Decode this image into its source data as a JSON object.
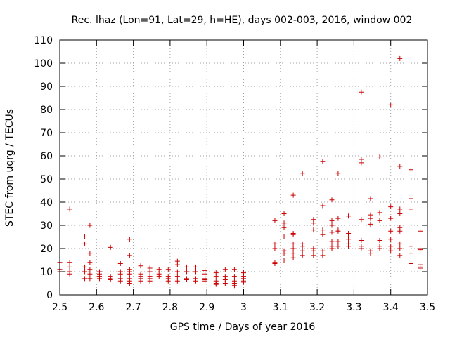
{
  "chart_data": {
    "type": "scatter",
    "title": "Rec. lhaz (Lon=91, Lat=29, h=HE), days 002-003, 2016, window 002",
    "xlabel": "GPS time / Days of year 2016",
    "ylabel": "STEC from uqrg / TECUs",
    "xlim": [
      2.5,
      3.5
    ],
    "ylim": [
      0,
      110
    ],
    "xticks": [
      2.5,
      2.6,
      2.7,
      2.8,
      2.9,
      3.0,
      3.1,
      3.2,
      3.3,
      3.4,
      3.5
    ],
    "xtick_labels": [
      "2.5",
      "2.6",
      "2.7",
      "2.8",
      "2.9",
      "3",
      "3.1",
      "3.2",
      "3.3",
      "3.4",
      "3.5"
    ],
    "yticks": [
      0,
      10,
      20,
      30,
      40,
      50,
      60,
      70,
      80,
      90,
      100,
      110
    ],
    "ytick_labels": [
      "0",
      "10",
      "20",
      "30",
      "40",
      "50",
      "60",
      "70",
      "80",
      "90",
      "100",
      "110"
    ],
    "marker": "+",
    "color": "#cc0000",
    "series": [
      {
        "name": "STEC",
        "points": [
          [
            2.5,
            25
          ],
          [
            2.5,
            15
          ],
          [
            2.5,
            14
          ],
          [
            2.5,
            11
          ],
          [
            2.5,
            10
          ],
          [
            2.527,
            37
          ],
          [
            2.527,
            14
          ],
          [
            2.527,
            12
          ],
          [
            2.527,
            10
          ],
          [
            2.527,
            9
          ],
          [
            2.568,
            25
          ],
          [
            2.568,
            22
          ],
          [
            2.568,
            12
          ],
          [
            2.568,
            10
          ],
          [
            2.568,
            7
          ],
          [
            2.582,
            30
          ],
          [
            2.582,
            18
          ],
          [
            2.582,
            14
          ],
          [
            2.582,
            11
          ],
          [
            2.582,
            9
          ],
          [
            2.582,
            7
          ],
          [
            2.608,
            10
          ],
          [
            2.608,
            9
          ],
          [
            2.608,
            8
          ],
          [
            2.608,
            7
          ],
          [
            2.638,
            20.5
          ],
          [
            2.638,
            8
          ],
          [
            2.638,
            7
          ],
          [
            2.638,
            6.5
          ],
          [
            2.665,
            13.5
          ],
          [
            2.665,
            10
          ],
          [
            2.665,
            9
          ],
          [
            2.665,
            7
          ],
          [
            2.665,
            6
          ],
          [
            2.69,
            24
          ],
          [
            2.69,
            17
          ],
          [
            2.69,
            11
          ],
          [
            2.69,
            10
          ],
          [
            2.69,
            9
          ],
          [
            2.69,
            7
          ],
          [
            2.69,
            6
          ],
          [
            2.69,
            5
          ],
          [
            2.72,
            12.5
          ],
          [
            2.72,
            9
          ],
          [
            2.72,
            8
          ],
          [
            2.72,
            7
          ],
          [
            2.72,
            6
          ],
          [
            2.745,
            11.5
          ],
          [
            2.745,
            10
          ],
          [
            2.745,
            8
          ],
          [
            2.745,
            7
          ],
          [
            2.745,
            6
          ],
          [
            2.77,
            11
          ],
          [
            2.77,
            9
          ],
          [
            2.77,
            8
          ],
          [
            2.795,
            11
          ],
          [
            2.795,
            8
          ],
          [
            2.795,
            7
          ],
          [
            2.795,
            6
          ],
          [
            2.82,
            14.5
          ],
          [
            2.82,
            13
          ],
          [
            2.82,
            10
          ],
          [
            2.82,
            8
          ],
          [
            2.82,
            6
          ],
          [
            2.845,
            12
          ],
          [
            2.845,
            10
          ],
          [
            2.845,
            7
          ],
          [
            2.845,
            6.5
          ],
          [
            2.87,
            12
          ],
          [
            2.87,
            10
          ],
          [
            2.87,
            7
          ],
          [
            2.87,
            6
          ],
          [
            2.895,
            10.5
          ],
          [
            2.895,
            9
          ],
          [
            2.895,
            7
          ],
          [
            2.895,
            6.5
          ],
          [
            2.895,
            6
          ],
          [
            2.925,
            9.5
          ],
          [
            2.925,
            8
          ],
          [
            2.925,
            6
          ],
          [
            2.925,
            5
          ],
          [
            2.925,
            4.5
          ],
          [
            2.95,
            11
          ],
          [
            2.95,
            8
          ],
          [
            2.95,
            6.5
          ],
          [
            2.95,
            5
          ],
          [
            2.975,
            11
          ],
          [
            2.975,
            8
          ],
          [
            2.975,
            6
          ],
          [
            2.975,
            5
          ],
          [
            2.975,
            4
          ],
          [
            3.0,
            9.5
          ],
          [
            3.0,
            8
          ],
          [
            3.0,
            7
          ],
          [
            3.0,
            6
          ],
          [
            3.0,
            5.5
          ],
          [
            3.085,
            32
          ],
          [
            3.085,
            22
          ],
          [
            3.085,
            20
          ],
          [
            3.085,
            14
          ],
          [
            3.085,
            13.5
          ],
          [
            3.11,
            35
          ],
          [
            3.11,
            31
          ],
          [
            3.11,
            29
          ],
          [
            3.11,
            25
          ],
          [
            3.11,
            19
          ],
          [
            3.11,
            18
          ],
          [
            3.11,
            15
          ],
          [
            3.135,
            43
          ],
          [
            3.135,
            26.5
          ],
          [
            3.135,
            26
          ],
          [
            3.135,
            22
          ],
          [
            3.135,
            20
          ],
          [
            3.135,
            18
          ],
          [
            3.135,
            16
          ],
          [
            3.16,
            52.5
          ],
          [
            3.16,
            22
          ],
          [
            3.16,
            21
          ],
          [
            3.16,
            19
          ],
          [
            3.16,
            17
          ],
          [
            3.19,
            32.5
          ],
          [
            3.19,
            31
          ],
          [
            3.19,
            28
          ],
          [
            3.19,
            20
          ],
          [
            3.19,
            19
          ],
          [
            3.19,
            17
          ],
          [
            3.215,
            57.5
          ],
          [
            3.215,
            38.5
          ],
          [
            3.215,
            28
          ],
          [
            3.215,
            26
          ],
          [
            3.215,
            19
          ],
          [
            3.215,
            17
          ],
          [
            3.24,
            41
          ],
          [
            3.24,
            32
          ],
          [
            3.24,
            30
          ],
          [
            3.24,
            27
          ],
          [
            3.24,
            23
          ],
          [
            3.24,
            21
          ],
          [
            3.24,
            20
          ],
          [
            3.257,
            52.5
          ],
          [
            3.257,
            33
          ],
          [
            3.257,
            28
          ],
          [
            3.257,
            27.5
          ],
          [
            3.257,
            23
          ],
          [
            3.257,
            21
          ],
          [
            3.285,
            34
          ],
          [
            3.285,
            26.5
          ],
          [
            3.285,
            25
          ],
          [
            3.285,
            24
          ],
          [
            3.285,
            22
          ],
          [
            3.285,
            21
          ],
          [
            3.32,
            87.5
          ],
          [
            3.32,
            58.5
          ],
          [
            3.32,
            57
          ],
          [
            3.32,
            32.5
          ],
          [
            3.32,
            23.5
          ],
          [
            3.32,
            21
          ],
          [
            3.32,
            20
          ],
          [
            3.345,
            41.5
          ],
          [
            3.345,
            34.5
          ],
          [
            3.345,
            33
          ],
          [
            3.345,
            30.5
          ],
          [
            3.345,
            19
          ],
          [
            3.345,
            18
          ],
          [
            3.37,
            59.5
          ],
          [
            3.37,
            35.5
          ],
          [
            3.37,
            32
          ],
          [
            3.37,
            23.5
          ],
          [
            3.37,
            21
          ],
          [
            3.37,
            20
          ],
          [
            3.4,
            82
          ],
          [
            3.4,
            38
          ],
          [
            3.4,
            33
          ],
          [
            3.4,
            27.5
          ],
          [
            3.4,
            24
          ],
          [
            3.4,
            21
          ],
          [
            3.4,
            19
          ],
          [
            3.425,
            102
          ],
          [
            3.425,
            55.5
          ],
          [
            3.425,
            37
          ],
          [
            3.425,
            35
          ],
          [
            3.425,
            29
          ],
          [
            3.425,
            27.5
          ],
          [
            3.425,
            22
          ],
          [
            3.425,
            20
          ],
          [
            3.425,
            17
          ],
          [
            3.455,
            54
          ],
          [
            3.455,
            41.5
          ],
          [
            3.455,
            37
          ],
          [
            3.455,
            21
          ],
          [
            3.455,
            18
          ],
          [
            3.455,
            13.5
          ],
          [
            3.48,
            27.5
          ],
          [
            3.48,
            20
          ],
          [
            3.48,
            19.5
          ],
          [
            3.48,
            13
          ],
          [
            3.48,
            12
          ],
          [
            3.48,
            11.5
          ]
        ]
      }
    ]
  }
}
